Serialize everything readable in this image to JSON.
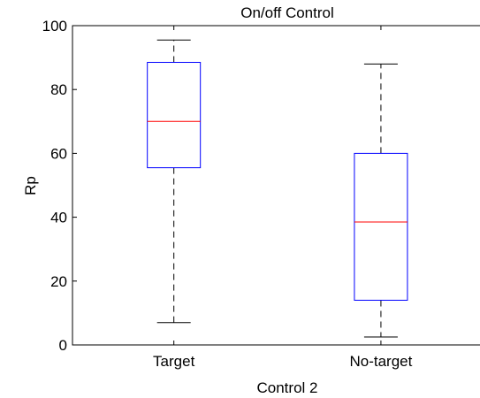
{
  "chart_data": {
    "type": "box",
    "title": "On/off Control",
    "xlabel": "Control 2",
    "ylabel": "Rp",
    "ylim": [
      0,
      100
    ],
    "yticks": [
      0,
      20,
      40,
      60,
      80,
      100
    ],
    "categories": [
      "Target",
      "No-target"
    ],
    "boxes": [
      {
        "category": "Target",
        "whisker_low": 7,
        "q1": 55.5,
        "median": 70,
        "q3": 88.5,
        "whisker_high": 95.5
      },
      {
        "category": "No-target",
        "whisker_low": 2.5,
        "q1": 14,
        "median": 38.5,
        "q3": 60,
        "whisker_high": 88
      }
    ],
    "colors": {
      "box": "#0000ff",
      "median": "#ff0000",
      "whisker": "#000000"
    },
    "grid": false
  }
}
